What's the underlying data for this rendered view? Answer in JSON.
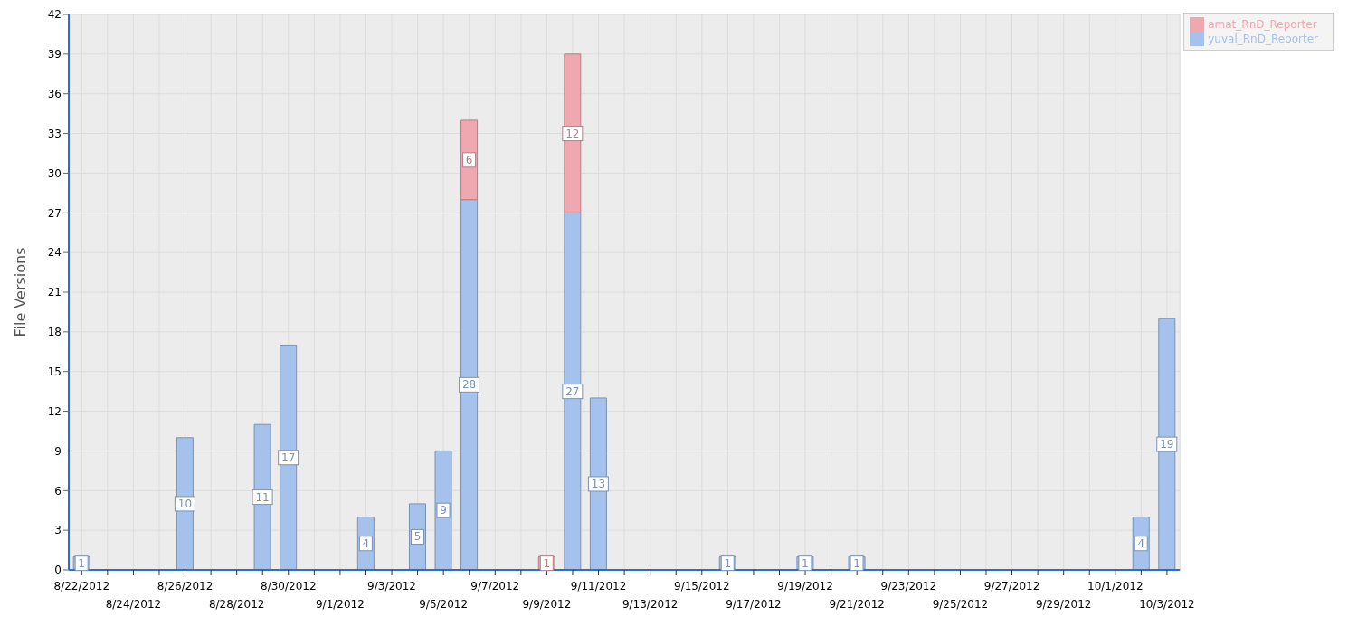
{
  "chart_data": {
    "type": "bar",
    "ylabel": "File Versions",
    "stacked": true,
    "data_labels": true,
    "grid": true,
    "legend": "top right",
    "categories": [
      "8/22/2012",
      null,
      "8/24/2012",
      null,
      "8/26/2012",
      null,
      "8/28/2012",
      null,
      "8/30/2012",
      null,
      "9/1/2012",
      null,
      "9/3/2012",
      null,
      "9/5/2012",
      null,
      "9/7/2012",
      null,
      "9/9/2012",
      null,
      "9/11/2012",
      null,
      "9/13/2012",
      null,
      "9/15/2012",
      null,
      "9/17/2012",
      null,
      "9/19/2012",
      null,
      "9/21/2012",
      null,
      "9/23/2012",
      null,
      "9/25/2012",
      null,
      "9/27/2012",
      null,
      "9/29/2012",
      null,
      "10/1/2012",
      null,
      "10/3/2012"
    ],
    "ylim": [
      0,
      42
    ],
    "yticks": [
      0,
      3,
      6,
      9,
      12,
      15,
      18,
      21,
      24,
      27,
      30,
      33,
      36,
      39,
      42
    ],
    "series": [
      {
        "name": "yuval_RnD_Reporter",
        "color": "#a4c2ec",
        "values": [
          1,
          null,
          null,
          null,
          10,
          null,
          null,
          11,
          17,
          null,
          null,
          4,
          null,
          5,
          9,
          28,
          null,
          null,
          null,
          27,
          13,
          null,
          null,
          null,
          null,
          1,
          null,
          null,
          1,
          null,
          1,
          null,
          null,
          null,
          null,
          null,
          null,
          null,
          null,
          null,
          null,
          4,
          19
        ]
      },
      {
        "name": "amat_RnD_Reporter",
        "color": "#f0a8b0",
        "values": [
          null,
          null,
          null,
          null,
          null,
          null,
          null,
          null,
          null,
          null,
          null,
          null,
          null,
          null,
          null,
          6,
          null,
          null,
          1,
          12,
          null,
          null,
          null,
          null,
          null,
          null,
          null,
          null,
          null,
          null,
          null,
          null,
          null,
          null,
          null,
          null,
          null,
          null,
          null,
          null,
          null,
          null,
          null
        ]
      }
    ]
  }
}
